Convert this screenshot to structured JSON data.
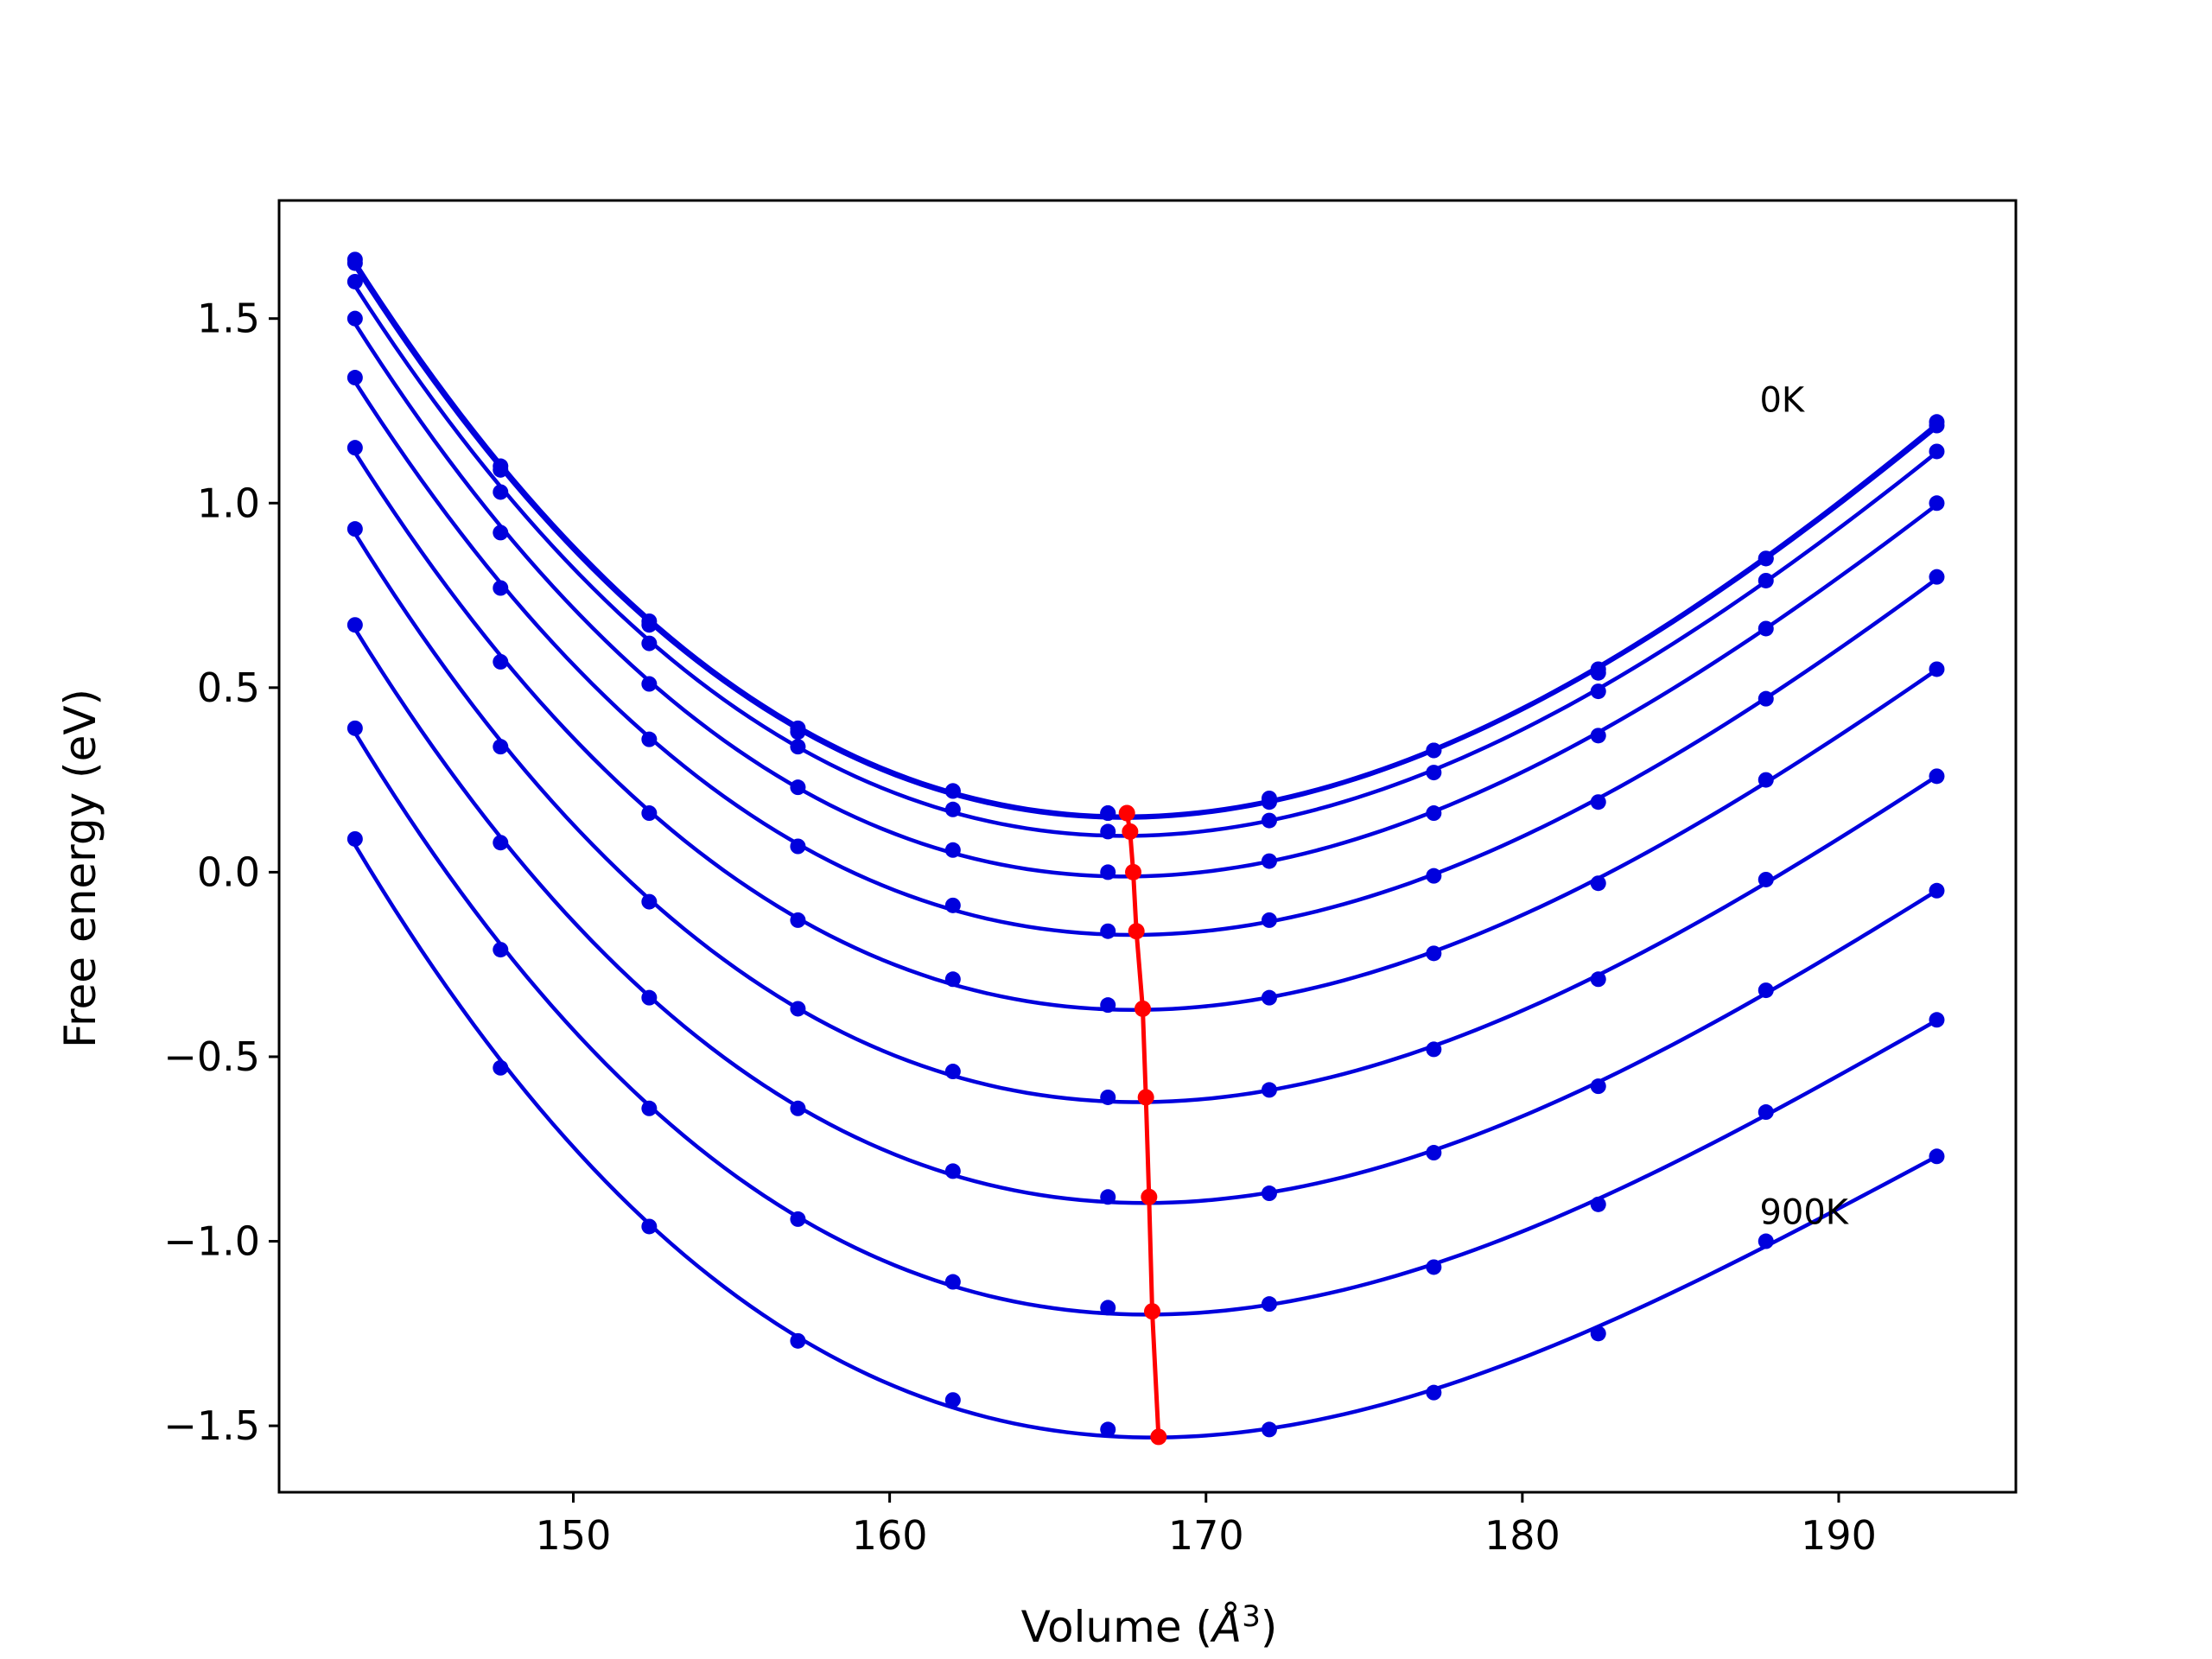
{
  "chart_data": {
    "type": "line",
    "xlabel": "Volume (",
    "xlabel_unit": "Å",
    "xlabel_exp": "3",
    "xlabel_close": ")",
    "ylabel": "Free energy (eV)",
    "xlim": [
      140.7,
      195.6
    ],
    "ylim": [
      -1.68,
      1.82
    ],
    "xticks": [
      150,
      160,
      170,
      180,
      190
    ],
    "xtick_labels": [
      "150",
      "160",
      "170",
      "180",
      "190"
    ],
    "yticks": [
      1.5,
      1.0,
      0.5,
      0.0,
      -0.5,
      -1.0,
      -1.5
    ],
    "ytick_labels": [
      "1.5",
      "1.0",
      "0.5",
      "0.0",
      "−0.5",
      "−1.0",
      "−1.5"
    ],
    "grid": false,
    "annotations": [
      {
        "text": "0K",
        "x": 187.5,
        "y": 1.28
      },
      {
        "text": "900K",
        "x": 187.5,
        "y": -0.92
      }
    ],
    "volumes": [
      143.1,
      147.7,
      152.4,
      157.1,
      162.0,
      166.9,
      172.0,
      177.2,
      182.4,
      187.7,
      193.1
    ],
    "series": [
      {
        "values": [
          1.66,
          1.1,
          0.68,
          0.39,
          0.22,
          0.16,
          0.2,
          0.33,
          0.55,
          0.85,
          1.22
        ]
      },
      {
        "values": [
          1.65,
          1.09,
          0.67,
          0.38,
          0.22,
          0.16,
          0.19,
          0.33,
          0.54,
          0.85,
          1.21
        ]
      },
      {
        "values": [
          1.6,
          1.03,
          0.62,
          0.34,
          0.17,
          0.11,
          0.14,
          0.27,
          0.49,
          0.79,
          1.14
        ]
      },
      {
        "values": [
          1.5,
          0.92,
          0.51,
          0.23,
          0.06,
          0.0,
          0.03,
          0.16,
          0.37,
          0.66,
          1.0
        ]
      },
      {
        "values": [
          1.34,
          0.77,
          0.36,
          0.07,
          -0.09,
          -0.16,
          -0.13,
          -0.01,
          0.19,
          0.47,
          0.8
        ]
      },
      {
        "values": [
          1.15,
          0.57,
          0.16,
          -0.13,
          -0.29,
          -0.36,
          -0.34,
          -0.22,
          -0.03,
          0.25,
          0.55
        ]
      },
      {
        "values": [
          0.93,
          0.34,
          -0.08,
          -0.37,
          -0.54,
          -0.61,
          -0.59,
          -0.48,
          -0.29,
          -0.02,
          0.26
        ]
      },
      {
        "values": [
          0.67,
          0.08,
          -0.34,
          -0.64,
          -0.81,
          -0.88,
          -0.87,
          -0.76,
          -0.58,
          -0.32,
          -0.05
        ]
      },
      {
        "values": [
          0.39,
          -0.21,
          -0.64,
          -0.94,
          -1.11,
          -1.18,
          -1.17,
          -1.07,
          -0.9,
          -0.65,
          -0.4
        ]
      },
      {
        "values": [
          0.09,
          -0.53,
          -0.96,
          -1.27,
          -1.43,
          -1.51,
          -1.51,
          -1.41,
          -1.25,
          -1.0,
          -0.77
        ]
      }
    ],
    "minima": {
      "x": [
        167.5,
        167.6,
        167.7,
        167.8,
        168.0,
        168.1,
        168.2,
        168.3,
        168.5
      ],
      "y": [
        0.16,
        0.11,
        0.0,
        -0.16,
        -0.37,
        -0.61,
        -0.88,
        -1.19,
        -1.53
      ]
    },
    "colors": {
      "curves": "#0000dd",
      "minima": "#ff0000",
      "frame": "#000000"
    }
  }
}
